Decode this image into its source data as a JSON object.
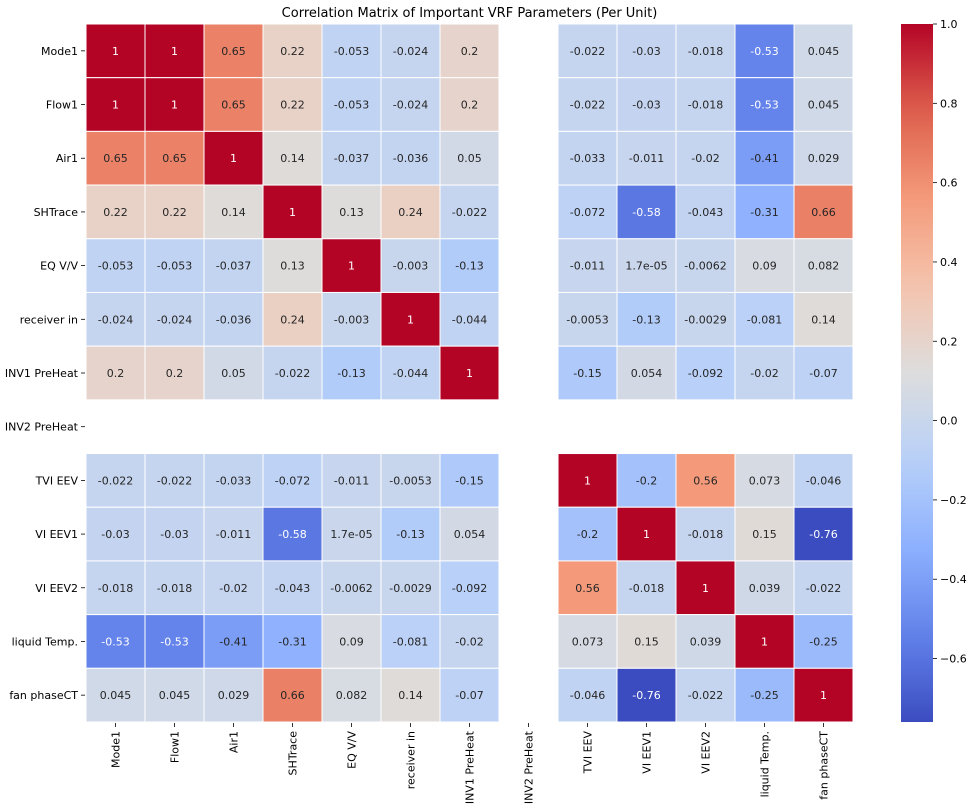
{
  "chart_data": {
    "type": "heatmap",
    "title": "Correlation Matrix of Important VRF Parameters (Per Unit)",
    "xlabel": "",
    "ylabel": "",
    "labels": [
      "Mode1",
      "Flow1",
      "Air1",
      "SHTrace",
      "EQ V/V",
      "receiver in",
      "INV1 PreHeat",
      "INV2 PreHeat",
      "TVI EEV",
      "VI EEV1",
      "VI EEV2",
      "liquid Temp.",
      "fan phaseCT"
    ],
    "cell_labels": [
      [
        "1",
        "1",
        "0.65",
        "0.22",
        "-0.053",
        "-0.024",
        "0.2",
        "",
        "-0.022",
        "-0.03",
        "-0.018",
        "-0.53",
        "0.045"
      ],
      [
        "1",
        "1",
        "0.65",
        "0.22",
        "-0.053",
        "-0.024",
        "0.2",
        "",
        "-0.022",
        "-0.03",
        "-0.018",
        "-0.53",
        "0.045"
      ],
      [
        "0.65",
        "0.65",
        "1",
        "0.14",
        "-0.037",
        "-0.036",
        "0.05",
        "",
        "-0.033",
        "-0.011",
        "-0.02",
        "-0.41",
        "0.029"
      ],
      [
        "0.22",
        "0.22",
        "0.14",
        "1",
        "0.13",
        "0.24",
        "-0.022",
        "",
        "-0.072",
        "-0.58",
        "-0.043",
        "-0.31",
        "0.66"
      ],
      [
        "-0.053",
        "-0.053",
        "-0.037",
        "0.13",
        "1",
        "-0.003",
        "-0.13",
        "",
        "-0.011",
        "1.7e-05",
        "-0.0062",
        "0.09",
        "0.082"
      ],
      [
        "-0.024",
        "-0.024",
        "-0.036",
        "0.24",
        "-0.003",
        "1",
        "-0.044",
        "",
        "-0.0053",
        "-0.13",
        "-0.0029",
        "-0.081",
        "0.14"
      ],
      [
        "0.2",
        "0.2",
        "0.05",
        "-0.022",
        "-0.13",
        "-0.044",
        "1",
        "",
        "-0.15",
        "0.054",
        "-0.092",
        "-0.02",
        "-0.07"
      ],
      [
        "",
        "",
        "",
        "",
        "",
        "",
        "",
        "",
        "",
        "",
        "",
        "",
        ""
      ],
      [
        "-0.022",
        "-0.022",
        "-0.033",
        "-0.072",
        "-0.011",
        "-0.0053",
        "-0.15",
        "",
        "1",
        "-0.2",
        "0.56",
        "0.073",
        "-0.046"
      ],
      [
        "-0.03",
        "-0.03",
        "-0.011",
        "-0.58",
        "1.7e-05",
        "-0.13",
        "0.054",
        "",
        "-0.2",
        "1",
        "-0.018",
        "0.15",
        "-0.76"
      ],
      [
        "-0.018",
        "-0.018",
        "-0.02",
        "-0.043",
        "-0.0062",
        "-0.0029",
        "-0.092",
        "",
        "0.56",
        "-0.018",
        "1",
        "0.039",
        "-0.022"
      ],
      [
        "-0.53",
        "-0.53",
        "-0.41",
        "-0.31",
        "0.09",
        "-0.081",
        "-0.02",
        "",
        "0.073",
        "0.15",
        "0.039",
        "1",
        "-0.25"
      ],
      [
        "0.045",
        "0.045",
        "0.029",
        "0.66",
        "0.082",
        "0.14",
        "-0.07",
        "",
        "-0.046",
        "-0.76",
        "-0.022",
        "-0.25",
        "1"
      ]
    ],
    "colorbar": {
      "range": [
        -0.76,
        1.0
      ],
      "ticks": [
        1.0,
        0.8,
        0.6,
        0.4,
        0.2,
        0.0,
        -0.2,
        -0.4,
        -0.6
      ],
      "tick_labels": [
        "1.0",
        "0.8",
        "0.6",
        "0.4",
        "0.2",
        "0.0",
        "−0.2",
        "−0.4",
        "−0.6"
      ]
    },
    "colormap": "coolwarm",
    "colors": {
      "low": "#3b4cc0",
      "mid": "#dddddd",
      "high": "#b40426"
    },
    "grid": true
  }
}
